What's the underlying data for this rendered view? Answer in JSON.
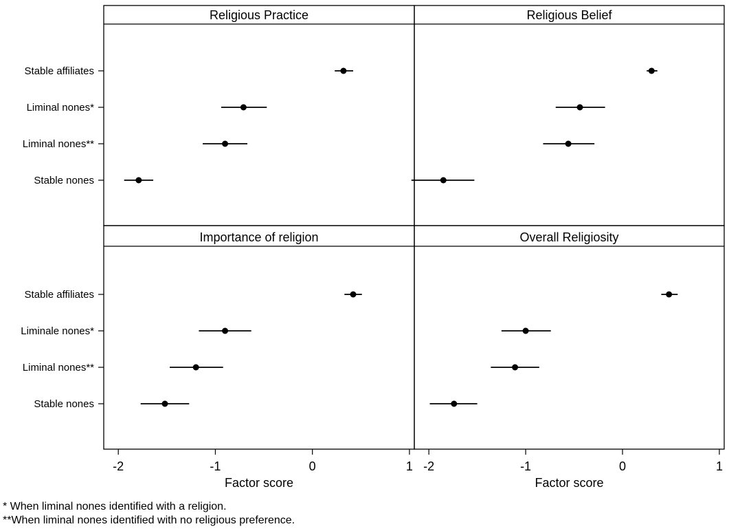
{
  "chart_data": {
    "type": "scatter",
    "subtype": "coefficient-plot-with-confidence-intervals",
    "x_axis": {
      "label": "Factor score",
      "ticks": [
        "-2",
        "-1",
        "0",
        "1"
      ],
      "range": [
        -2.15,
        1.05
      ]
    },
    "panels": [
      {
        "title": "Religious Practice",
        "categories": [
          "Stable affiliates",
          "Liminal nones*",
          "Liminal nones**",
          "Stable nones"
        ],
        "estimates": [
          0.32,
          -0.71,
          -0.9,
          -1.79
        ],
        "ci": [
          [
            0.23,
            0.42
          ],
          [
            -0.94,
            -0.47
          ],
          [
            -1.13,
            -0.67
          ],
          [
            -1.94,
            -1.64
          ]
        ]
      },
      {
        "title": "Religious Belief",
        "categories": [
          "",
          "",
          "",
          ""
        ],
        "estimates": [
          0.3,
          -0.44,
          -0.56,
          -1.85
        ],
        "ci": [
          [
            0.25,
            0.36
          ],
          [
            -0.69,
            -0.18
          ],
          [
            -0.82,
            -0.29
          ],
          [
            -2.18,
            -1.53
          ]
        ]
      },
      {
        "title": "Importance of religion",
        "categories": [
          "Stable affiliates",
          "Liminale nones*",
          "Liminal nones**",
          "Stable nones"
        ],
        "estimates": [
          0.42,
          -0.9,
          -1.2,
          -1.52
        ],
        "ci": [
          [
            0.33,
            0.51
          ],
          [
            -1.17,
            -0.63
          ],
          [
            -1.47,
            -0.92
          ],
          [
            -1.77,
            -1.27
          ]
        ]
      },
      {
        "title": "Overall Religiosity",
        "categories": [
          "",
          "",
          "",
          ""
        ],
        "estimates": [
          0.48,
          -1.0,
          -1.11,
          -1.74
        ],
        "ci": [
          [
            0.4,
            0.57
          ],
          [
            -1.25,
            -0.74
          ],
          [
            -1.36,
            -0.86
          ],
          [
            -1.99,
            -1.5
          ]
        ]
      }
    ],
    "grid": false,
    "legend": "none"
  },
  "footnotes": {
    "note1": "* When liminal nones identified with a religion.",
    "note2": "**When liminal nones identified with no religious preference."
  }
}
